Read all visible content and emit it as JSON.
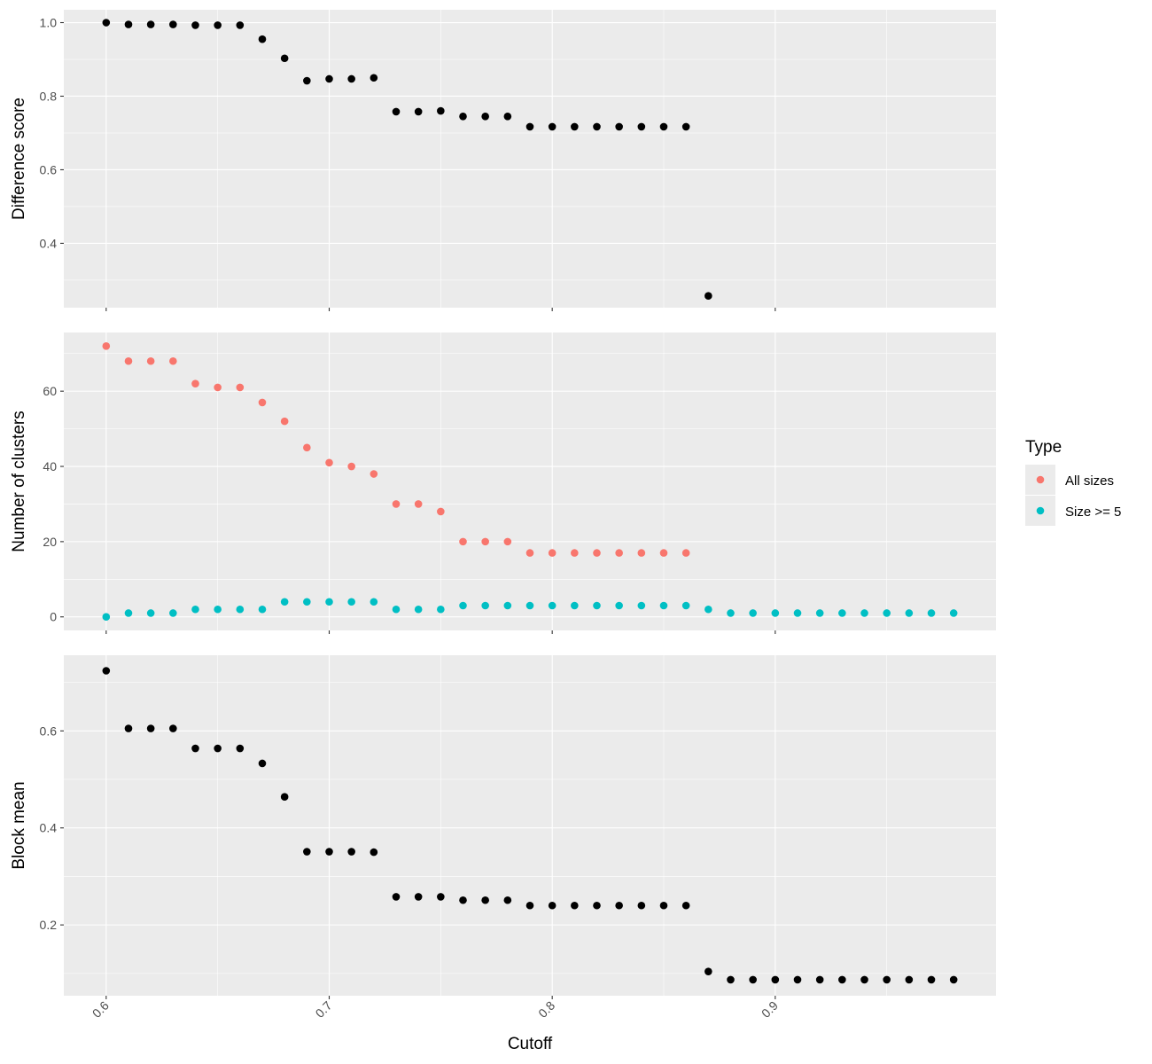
{
  "chart_data": [
    {
      "type": "scatter",
      "ylabel": "Difference score",
      "yticks": [
        "0.4",
        "0.6",
        "0.8",
        "1.0"
      ],
      "ylim": [
        0.225,
        1.035
      ],
      "series": [
        {
          "color": "#000000",
          "x": [
            0.6,
            0.61,
            0.62,
            0.63,
            0.64,
            0.65,
            0.66,
            0.67,
            0.68,
            0.69,
            0.7,
            0.71,
            0.72,
            0.73,
            0.74,
            0.75,
            0.76,
            0.77,
            0.78,
            0.79,
            0.8,
            0.81,
            0.82,
            0.83,
            0.84,
            0.85,
            0.86,
            0.87
          ],
          "y": [
            1.0,
            0.995,
            0.995,
            0.995,
            0.993,
            0.993,
            0.993,
            0.955,
            0.903,
            0.842,
            0.847,
            0.847,
            0.85,
            0.758,
            0.758,
            0.76,
            0.745,
            0.745,
            0.745,
            0.717,
            0.717,
            0.717,
            0.717,
            0.717,
            0.717,
            0.717,
            0.717,
            0.257
          ]
        }
      ]
    },
    {
      "type": "scatter",
      "ylabel": "Number of clusters",
      "yticks": [
        "0",
        "20",
        "40",
        "60"
      ],
      "ylim": [
        -3.6,
        75.6
      ],
      "series": [
        {
          "name": "All sizes",
          "color": "#f8766d",
          "x": [
            0.6,
            0.61,
            0.62,
            0.63,
            0.64,
            0.65,
            0.66,
            0.67,
            0.68,
            0.69,
            0.7,
            0.71,
            0.72,
            0.73,
            0.74,
            0.75,
            0.76,
            0.77,
            0.78,
            0.79,
            0.8,
            0.81,
            0.82,
            0.83,
            0.84,
            0.85,
            0.86
          ],
          "y": [
            72,
            68,
            68,
            68,
            62,
            61,
            61,
            57,
            52,
            45,
            41,
            40,
            38,
            30,
            30,
            28,
            20,
            20,
            20,
            17,
            17,
            17,
            17,
            17,
            17,
            17,
            17
          ]
        },
        {
          "name": "Size >= 5",
          "color": "#00bfc4",
          "x": [
            0.6,
            0.61,
            0.62,
            0.63,
            0.64,
            0.65,
            0.66,
            0.67,
            0.68,
            0.69,
            0.7,
            0.71,
            0.72,
            0.73,
            0.74,
            0.75,
            0.76,
            0.77,
            0.78,
            0.79,
            0.8,
            0.81,
            0.82,
            0.83,
            0.84,
            0.85,
            0.86,
            0.87,
            0.88,
            0.89,
            0.9,
            0.91,
            0.92,
            0.93,
            0.94,
            0.95,
            0.96,
            0.97,
            0.98
          ],
          "y": [
            0,
            1,
            1,
            1,
            2,
            2,
            2,
            2,
            4,
            4,
            4,
            4,
            4,
            2,
            2,
            2,
            3,
            3,
            3,
            3,
            3,
            3,
            3,
            3,
            3,
            3,
            3,
            2,
            1,
            1,
            1,
            1,
            1,
            1,
            1,
            1,
            1,
            1,
            1
          ]
        }
      ]
    },
    {
      "type": "scatter",
      "ylabel": "Block mean",
      "yticks": [
        "0.2",
        "0.4",
        "0.6"
      ],
      "ylim": [
        0.054,
        0.756
      ],
      "series": [
        {
          "color": "#000000",
          "x": [
            0.6,
            0.61,
            0.62,
            0.63,
            0.64,
            0.65,
            0.66,
            0.67,
            0.68,
            0.69,
            0.7,
            0.71,
            0.72,
            0.73,
            0.74,
            0.75,
            0.76,
            0.77,
            0.78,
            0.79,
            0.8,
            0.81,
            0.82,
            0.83,
            0.84,
            0.85,
            0.86,
            0.87,
            0.88,
            0.89,
            0.9,
            0.91,
            0.92,
            0.93,
            0.94,
            0.95,
            0.96,
            0.97,
            0.98
          ],
          "y": [
            0.724,
            0.605,
            0.605,
            0.605,
            0.564,
            0.564,
            0.564,
            0.533,
            0.464,
            0.351,
            0.351,
            0.351,
            0.35,
            0.258,
            0.258,
            0.258,
            0.251,
            0.251,
            0.251,
            0.24,
            0.24,
            0.24,
            0.24,
            0.24,
            0.24,
            0.24,
            0.24,
            0.104,
            0.087,
            0.087,
            0.087,
            0.087,
            0.087,
            0.087,
            0.087,
            0.087,
            0.087,
            0.087,
            0.087
          ]
        }
      ]
    }
  ],
  "xaxis": {
    "label": "Cutoff",
    "ticks": [
      "0.6",
      "0.7",
      "0.8",
      "0.9"
    ],
    "xlim": [
      0.581,
      0.999
    ]
  },
  "legend": {
    "title": "Type",
    "position": "right",
    "items": [
      {
        "label": "All sizes",
        "color": "#f8766d"
      },
      {
        "label": "Size >= 5",
        "color": "#00bfc4"
      }
    ]
  }
}
